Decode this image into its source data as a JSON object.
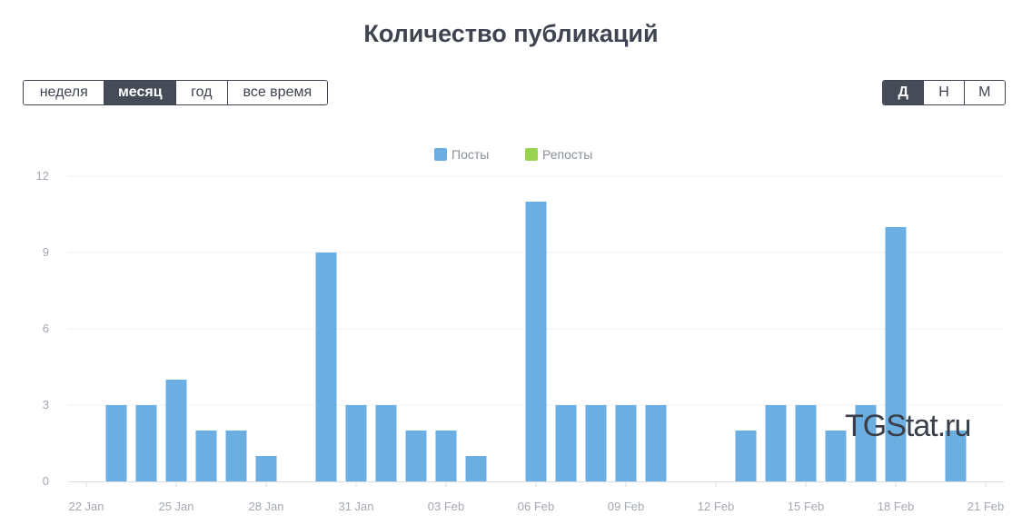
{
  "header": {
    "title": "Количество публикаций"
  },
  "period_buttons": [
    {
      "label": "неделя",
      "active": false
    },
    {
      "label": "месяц",
      "active": true
    },
    {
      "label": "год",
      "active": false
    },
    {
      "label": "все время",
      "active": false
    }
  ],
  "granularity_buttons": [
    {
      "label": "Д",
      "active": true
    },
    {
      "label": "Н",
      "active": false
    },
    {
      "label": "М",
      "active": false
    }
  ],
  "watermark": "TGStat.ru",
  "chart_data": {
    "type": "bar",
    "title": "",
    "xlabel": "",
    "ylabel": "",
    "ylim": [
      0,
      12
    ],
    "yticks": [
      0,
      3,
      6,
      9,
      12
    ],
    "grid": true,
    "legend_position": "top-center",
    "categories": [
      "22 Jan",
      "23 Jan",
      "24 Jan",
      "25 Jan",
      "26 Jan",
      "27 Jan",
      "28 Jan",
      "29 Jan",
      "30 Jan",
      "31 Jan",
      "01 Feb",
      "02 Feb",
      "03 Feb",
      "04 Feb",
      "05 Feb",
      "06 Feb",
      "07 Feb",
      "08 Feb",
      "09 Feb",
      "10 Feb",
      "11 Feb",
      "12 Feb",
      "13 Feb",
      "14 Feb",
      "15 Feb",
      "16 Feb",
      "17 Feb",
      "18 Feb",
      "19 Feb",
      "20 Feb",
      "21 Feb"
    ],
    "tick_labels": [
      "22 Jan",
      "25 Jan",
      "28 Jan",
      "31 Jan",
      "03 Feb",
      "06 Feb",
      "09 Feb",
      "12 Feb",
      "15 Feb",
      "18 Feb",
      "21 Feb"
    ],
    "series": [
      {
        "name": "Посты",
        "color": "#6aaee2",
        "values": [
          0,
          3,
          3,
          4,
          2,
          2,
          1,
          0,
          9,
          3,
          3,
          2,
          2,
          1,
          0,
          11,
          3,
          3,
          3,
          3,
          0,
          0,
          2,
          3,
          3,
          2,
          3,
          10,
          0,
          2,
          0
        ]
      },
      {
        "name": "Репосты",
        "color": "#9ad44f",
        "values": [
          0,
          0,
          0,
          0,
          0,
          0,
          0,
          0,
          0,
          0,
          0,
          0,
          0,
          0,
          0,
          0,
          0,
          0,
          0,
          0,
          0,
          0,
          0,
          0,
          0,
          0,
          0,
          0,
          0,
          0,
          0
        ]
      }
    ]
  }
}
